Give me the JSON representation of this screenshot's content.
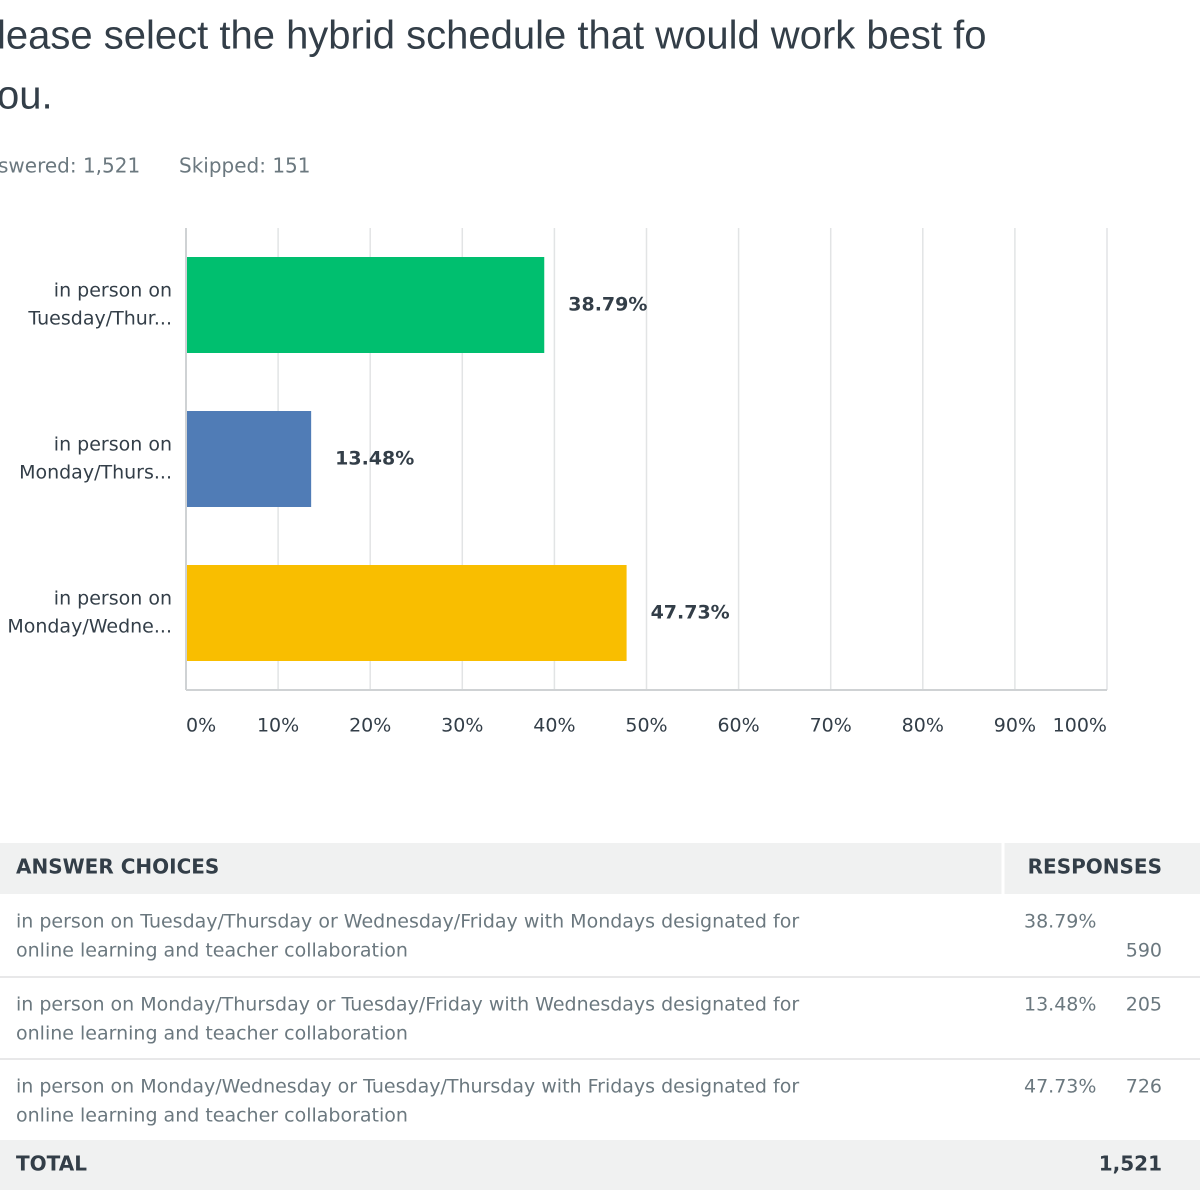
{
  "header": {
    "title_lines": [
      "lease select the hybrid schedule that would work best fo",
      "ou."
    ],
    "answered": "swered: 1,521",
    "skipped": "Skipped: 151"
  },
  "chart_data": {
    "type": "bar",
    "orientation": "horizontal",
    "categories": [
      [
        "in person on",
        "Tuesday/Thur..."
      ],
      [
        "in person on",
        "Monday/Thurs..."
      ],
      [
        "in person on",
        "Monday/Wedne..."
      ]
    ],
    "values": [
      38.79,
      13.48,
      47.73
    ],
    "value_labels": [
      "38.79%",
      "13.48%",
      "47.73%"
    ],
    "colors": [
      "#00bf6f",
      "#507cb6",
      "#f9be00"
    ],
    "xlim": [
      0,
      100
    ],
    "xticks": [
      {
        "value": 0,
        "label": "0%"
      },
      {
        "value": 10,
        "label": "10%"
      },
      {
        "value": 20,
        "label": "20%"
      },
      {
        "value": 30,
        "label": "30%"
      },
      {
        "value": 40,
        "label": "40%"
      },
      {
        "value": 50,
        "label": "50%"
      },
      {
        "value": 60,
        "label": "60%"
      },
      {
        "value": 70,
        "label": "70%"
      },
      {
        "value": 80,
        "label": "80%"
      },
      {
        "value": 90,
        "label": "90%"
      },
      {
        "value": 100,
        "label": "100%"
      }
    ],
    "grid": true
  },
  "table": {
    "header": [
      "ANSWER CHOICES",
      "RESPONSES"
    ],
    "rows": [
      [
        [
          "in person on Tuesday/Thursday or Wednesday/Friday with Mondays designated for",
          "online learning and teacher collaboration"
        ],
        "38.79%",
        "590"
      ],
      [
        [
          "in person on Monday/Thursday or Tuesday/Friday with Wednesdays designated for",
          "online learning and teacher collaboration"
        ],
        "13.48%",
        "205"
      ],
      [
        [
          "in person on Monday/Wednesday or Tuesday/Thursday with Fridays designated for",
          "online learning and teacher collaboration"
        ],
        "47.73%",
        "726"
      ]
    ],
    "total": [
      "TOTAL",
      "1,521"
    ]
  }
}
